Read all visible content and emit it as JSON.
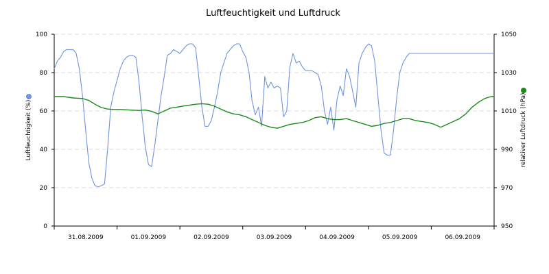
{
  "chart_data": {
    "type": "line",
    "title": "Luftfeuchtigkeit und Luftdruck",
    "x": {
      "categories": [
        "31.08.2009",
        "01.09.2009",
        "02.09.2009",
        "03.09.2009",
        "04.09.2009",
        "05.09.2009",
        "06.09.2009"
      ],
      "range_days": [
        0,
        7
      ]
    },
    "y_left": {
      "label": "Luftfeuchtigkeit (%)",
      "range": [
        0,
        100
      ],
      "ticks": [
        0,
        20,
        40,
        60,
        80,
        100
      ]
    },
    "y_right": {
      "label": "relativer Luftdruck (hPa)",
      "range": [
        950,
        1050
      ],
      "ticks": [
        950,
        970,
        990,
        1010,
        1030,
        1050
      ]
    },
    "grid": "horizontal dashed",
    "legend": "markers next to axis titles",
    "series": [
      {
        "name": "Luftfeuchtigkeit (%)",
        "axis": "left",
        "color": "#6f93dd",
        "points": [
          [
            0.0,
            82
          ],
          [
            0.05,
            86
          ],
          [
            0.1,
            88
          ],
          [
            0.15,
            91
          ],
          [
            0.2,
            92
          ],
          [
            0.25,
            92
          ],
          [
            0.3,
            92
          ],
          [
            0.35,
            90
          ],
          [
            0.4,
            82
          ],
          [
            0.45,
            68
          ],
          [
            0.5,
            50
          ],
          [
            0.55,
            33
          ],
          [
            0.6,
            25
          ],
          [
            0.65,
            21
          ],
          [
            0.7,
            20.5
          ],
          [
            0.75,
            21
          ],
          [
            0.8,
            22
          ],
          [
            0.85,
            40
          ],
          [
            0.9,
            62
          ],
          [
            0.95,
            70
          ],
          [
            1.0,
            76
          ],
          [
            1.05,
            82
          ],
          [
            1.1,
            86
          ],
          [
            1.15,
            88
          ],
          [
            1.2,
            89
          ],
          [
            1.25,
            89
          ],
          [
            1.3,
            88
          ],
          [
            1.35,
            75
          ],
          [
            1.4,
            57
          ],
          [
            1.45,
            41
          ],
          [
            1.5,
            32
          ],
          [
            1.55,
            31
          ],
          [
            1.6,
            42
          ],
          [
            1.65,
            55
          ],
          [
            1.7,
            68
          ],
          [
            1.75,
            78
          ],
          [
            1.8,
            89
          ],
          [
            1.85,
            90
          ],
          [
            1.9,
            92
          ],
          [
            1.95,
            91
          ],
          [
            2.0,
            90
          ],
          [
            2.05,
            92
          ],
          [
            2.1,
            94
          ],
          [
            2.15,
            95
          ],
          [
            2.2,
            95
          ],
          [
            2.25,
            93
          ],
          [
            2.3,
            78
          ],
          [
            2.35,
            62
          ],
          [
            2.4,
            52
          ],
          [
            2.45,
            52
          ],
          [
            2.5,
            55
          ],
          [
            2.55,
            62
          ],
          [
            2.6,
            70
          ],
          [
            2.65,
            80
          ],
          [
            2.7,
            85
          ],
          [
            2.75,
            90
          ],
          [
            2.8,
            92
          ],
          [
            2.85,
            94
          ],
          [
            2.9,
            95
          ],
          [
            2.95,
            95
          ],
          [
            3.0,
            91
          ],
          [
            3.05,
            88
          ],
          [
            3.1,
            80
          ],
          [
            3.15,
            65
          ],
          [
            3.2,
            58
          ],
          [
            3.25,
            62
          ],
          [
            3.3,
            52
          ],
          [
            3.35,
            78
          ],
          [
            3.4,
            72
          ],
          [
            3.45,
            75
          ],
          [
            3.5,
            72
          ],
          [
            3.55,
            73
          ],
          [
            3.6,
            72
          ],
          [
            3.65,
            57
          ],
          [
            3.7,
            60
          ],
          [
            3.75,
            83
          ],
          [
            3.8,
            90
          ],
          [
            3.85,
            85
          ],
          [
            3.9,
            86
          ],
          [
            3.95,
            83
          ],
          [
            4.0,
            81
          ],
          [
            4.05,
            81
          ],
          [
            4.1,
            81
          ],
          [
            4.15,
            80
          ],
          [
            4.2,
            79
          ],
          [
            4.25,
            73
          ],
          [
            4.3,
            60
          ],
          [
            4.35,
            53
          ],
          [
            4.4,
            62
          ],
          [
            4.45,
            50
          ],
          [
            4.5,
            66
          ],
          [
            4.55,
            73
          ],
          [
            4.6,
            68
          ],
          [
            4.65,
            82
          ],
          [
            4.7,
            78
          ],
          [
            4.75,
            70
          ],
          [
            4.8,
            62
          ],
          [
            4.85,
            85
          ],
          [
            4.9,
            90
          ],
          [
            4.95,
            93
          ],
          [
            5.0,
            95
          ],
          [
            5.05,
            94
          ],
          [
            5.1,
            86
          ],
          [
            5.15,
            68
          ],
          [
            5.2,
            50
          ],
          [
            5.25,
            38
          ],
          [
            5.3,
            37
          ],
          [
            5.35,
            37
          ],
          [
            5.4,
            50
          ],
          [
            5.45,
            67
          ],
          [
            5.5,
            80
          ],
          [
            5.55,
            85
          ],
          [
            5.6,
            88
          ],
          [
            5.65,
            90
          ],
          [
            5.7,
            90
          ],
          [
            5.75,
            90
          ],
          [
            5.8,
            90
          ],
          [
            5.85,
            90
          ],
          [
            5.9,
            90
          ],
          [
            5.95,
            90
          ],
          [
            6.0,
            90
          ],
          [
            6.05,
            90
          ],
          [
            6.1,
            90
          ],
          [
            6.15,
            90
          ],
          [
            6.2,
            90
          ],
          [
            6.25,
            90
          ],
          [
            6.3,
            90
          ],
          [
            6.35,
            90
          ],
          [
            6.4,
            90
          ],
          [
            6.45,
            90
          ],
          [
            6.5,
            90
          ],
          [
            6.55,
            90
          ],
          [
            6.6,
            90
          ],
          [
            6.65,
            90
          ],
          [
            6.7,
            90
          ],
          [
            6.75,
            90
          ],
          [
            6.8,
            90
          ],
          [
            6.85,
            90
          ],
          [
            6.9,
            90
          ],
          [
            6.95,
            90
          ],
          [
            7.0,
            90
          ]
        ]
      },
      {
        "name": "relativer Luftdruck (hPa)",
        "axis": "right",
        "color": "#1a8a1a",
        "points": [
          [
            0.0,
            1017.5
          ],
          [
            0.15,
            1017.5
          ],
          [
            0.3,
            1016.8
          ],
          [
            0.45,
            1016.5
          ],
          [
            0.55,
            1015.5
          ],
          [
            0.65,
            1013.5
          ],
          [
            0.75,
            1011.8
          ],
          [
            0.85,
            1011
          ],
          [
            0.95,
            1010.8
          ],
          [
            1.05,
            1010.8
          ],
          [
            1.2,
            1010.5
          ],
          [
            1.35,
            1010.3
          ],
          [
            1.45,
            1010.5
          ],
          [
            1.55,
            1009.8
          ],
          [
            1.65,
            1008.5
          ],
          [
            1.75,
            1010
          ],
          [
            1.85,
            1011.5
          ],
          [
            1.95,
            1012
          ],
          [
            2.1,
            1012.8
          ],
          [
            2.25,
            1013.5
          ],
          [
            2.35,
            1013.8
          ],
          [
            2.45,
            1013.5
          ],
          [
            2.55,
            1012.5
          ],
          [
            2.65,
            1011
          ],
          [
            2.75,
            1009.5
          ],
          [
            2.85,
            1008.5
          ],
          [
            2.95,
            1008
          ],
          [
            3.05,
            1007
          ],
          [
            3.15,
            1005.5
          ],
          [
            3.25,
            1004
          ],
          [
            3.35,
            1002.5
          ],
          [
            3.45,
            1001.5
          ],
          [
            3.55,
            1001
          ],
          [
            3.65,
            1002
          ],
          [
            3.75,
            1003
          ],
          [
            3.85,
            1003.5
          ],
          [
            3.95,
            1004
          ],
          [
            4.05,
            1005
          ],
          [
            4.15,
            1006.5
          ],
          [
            4.25,
            1007
          ],
          [
            4.35,
            1006
          ],
          [
            4.45,
            1005.5
          ],
          [
            4.55,
            1005.5
          ],
          [
            4.65,
            1006
          ],
          [
            4.75,
            1005
          ],
          [
            4.85,
            1004
          ],
          [
            4.95,
            1003
          ],
          [
            5.05,
            1002
          ],
          [
            5.15,
            1002.5
          ],
          [
            5.25,
            1003.5
          ],
          [
            5.35,
            1004
          ],
          [
            5.45,
            1005
          ],
          [
            5.55,
            1006
          ],
          [
            5.65,
            1006
          ],
          [
            5.75,
            1005
          ],
          [
            5.85,
            1004.5
          ],
          [
            5.95,
            1004
          ],
          [
            6.05,
            1003
          ],
          [
            6.15,
            1001.5
          ],
          [
            6.25,
            1003
          ],
          [
            6.35,
            1004.5
          ],
          [
            6.45,
            1006
          ],
          [
            6.55,
            1008.5
          ],
          [
            6.65,
            1012
          ],
          [
            6.75,
            1014.5
          ],
          [
            6.85,
            1016.5
          ],
          [
            6.95,
            1017.5
          ],
          [
            7.0,
            1017.5
          ]
        ]
      }
    ]
  }
}
